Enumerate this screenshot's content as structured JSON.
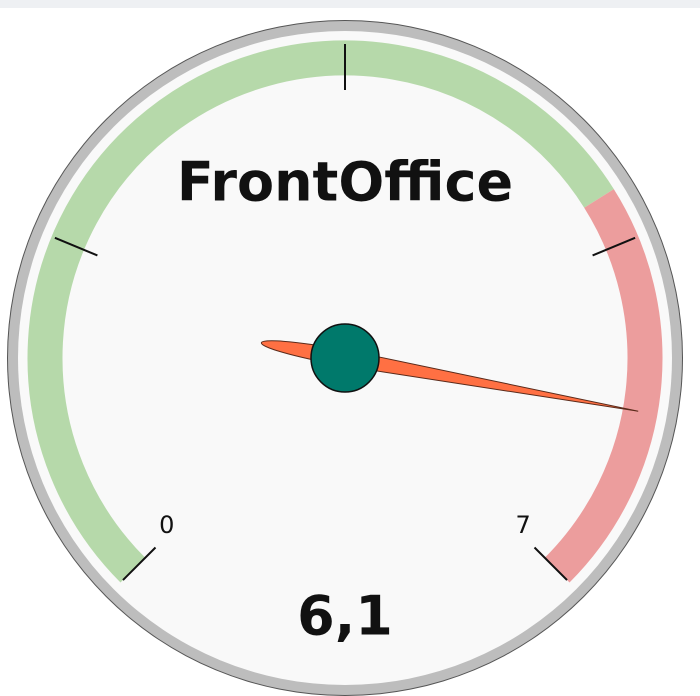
{
  "chart_data": {
    "type": "gauge",
    "title": "FrontOffice",
    "value": 6.1,
    "value_label": "6,1",
    "ylim": [
      0,
      7
    ],
    "yticks": [
      0,
      7
    ],
    "minor_ticks": [
      1.75,
      3.5,
      5.25
    ],
    "bands": [
      {
        "from": 0,
        "to": 5,
        "color": "#b6d9aa"
      },
      {
        "from": 5,
        "to": 7,
        "color": "#ec9d9d"
      }
    ],
    "needle_color": "#ff7043",
    "hub_color": "#00796b"
  }
}
